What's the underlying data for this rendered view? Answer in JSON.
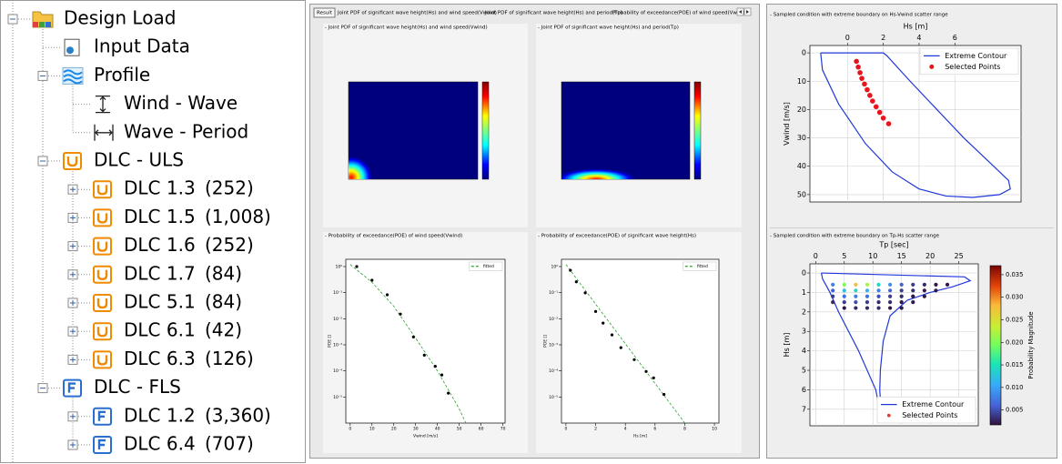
{
  "tree": {
    "label": "Design Load",
    "children": [
      {
        "label": "Input Data"
      },
      {
        "label": "Profile",
        "children": [
          {
            "label": "Wind - Wave"
          },
          {
            "label": "Wave - Period"
          }
        ]
      },
      {
        "label": "DLC - ULS",
        "children": [
          {
            "label": "DLC 1.3",
            "count": "(252)"
          },
          {
            "label": "DLC 1.5",
            "count": "(1,008)"
          },
          {
            "label": "DLC 1.6",
            "count": "(252)"
          },
          {
            "label": "DLC 1.7",
            "count": "(84)"
          },
          {
            "label": "DLC 5.1",
            "count": "(84)"
          },
          {
            "label": "DLC 6.1",
            "count": "(42)"
          },
          {
            "label": "DLC 6.3",
            "count": "(126)"
          }
        ]
      },
      {
        "label": "DLC - FLS",
        "children": [
          {
            "label": "DLC 1.2",
            "count": "(3,360)"
          },
          {
            "label": "DLC 6.4",
            "count": "(707)"
          }
        ]
      }
    ]
  },
  "tabs": {
    "button": "Result",
    "labels": [
      "Joint PDF of significant wave height(Hs) and wind speed(Vwind)",
      "Joint PDF of significant wave height(Hs) and period(Tp)",
      "Probability of exceedance(POE) of wind speed(Vwind)"
    ]
  },
  "middle": {
    "panels": [
      {
        "title": "- Joint PDF of significant wave height(Hs) and wind speed(Vwind)"
      },
      {
        "title": "- Joint PDF of significant wave height(Hs) and period(Tp)"
      }
    ]
  },
  "chart_data": [
    {
      "type": "line",
      "title": "- Probability of exceedance(POE) of wind speed(Vwind)",
      "xlabel": "Vwind [m/s]",
      "ylabel": "POE []",
      "log_y": true,
      "xlim": [
        -2,
        71
      ],
      "ylim": [
        1e-06,
        1.9
      ],
      "xticks": [
        0,
        10,
        20,
        30,
        40,
        50,
        60,
        70
      ],
      "yticks": [
        {
          "value": 1,
          "label": "10⁰"
        },
        {
          "value": 0.1,
          "label": "10⁻¹"
        },
        {
          "value": 0.01,
          "label": "10⁻²"
        },
        {
          "value": 0.001,
          "label": "10⁻³"
        },
        {
          "value": 0.0001,
          "label": "10⁻⁴"
        },
        {
          "value": 1e-05,
          "label": "10⁻⁵"
        }
      ],
      "legend": "upper right",
      "series": [
        {
          "name": "fitted",
          "color": "#2ca02c",
          "style": "dashed",
          "x": [
            0,
            10,
            20,
            30,
            40,
            50,
            53
          ],
          "values": [
            1.2,
            0.25,
            0.03,
            0.0018,
            0.0001,
            3.5e-06,
            1e-06
          ]
        },
        {
          "color": "#000000",
          "marker": "o",
          "x": [
            3,
            10,
            17,
            23,
            29,
            34,
            39,
            42,
            45
          ],
          "values": [
            1,
            0.3,
            0.083,
            0.015,
            0.002,
            0.0004,
            0.00015,
            7e-05,
            1.4e-05
          ]
        }
      ]
    },
    {
      "type": "line",
      "title": "- Probability of exceedance(POE) of significant wave height(Hs)",
      "xlabel": "Hs [m]",
      "ylabel": "POE []",
      "log_y": true,
      "xlim": [
        -0.3,
        10.3
      ],
      "ylim": [
        1e-06,
        1.9
      ],
      "xticks": [
        0,
        2,
        4,
        6,
        8,
        10
      ],
      "yticks": [
        {
          "value": 1,
          "label": "10⁰"
        },
        {
          "value": 0.1,
          "label": "10⁻¹"
        },
        {
          "value": 0.01,
          "label": "10⁻²"
        },
        {
          "value": 0.001,
          "label": "10⁻³"
        },
        {
          "value": 0.0001,
          "label": "10⁻⁴"
        },
        {
          "value": 1e-05,
          "label": "10⁻⁵"
        }
      ],
      "legend": "upper right",
      "series": [
        {
          "name": "fitted",
          "color": "#2ca02c",
          "style": "dashed",
          "x": [
            0,
            2,
            4,
            6,
            8
          ],
          "values": [
            1.2,
            0.036,
            0.0011,
            3.3e-05,
            1e-06
          ]
        },
        {
          "color": "#000000",
          "marker": "o",
          "x": [
            0.3,
            0.7,
            1.3,
            2.0,
            2.5,
            3.1,
            3.7,
            4.6,
            5.4,
            5.9,
            6.6
          ],
          "values": [
            0.72,
            0.26,
            0.098,
            0.019,
            0.0068,
            0.0024,
            0.00078,
            0.00027,
            9.5e-05,
            5.4e-05,
            1.26e-05
          ]
        }
      ]
    },
    {
      "type": "line",
      "title": "- Sampled condition with extreme boundary on Hs-Vwind scatter range",
      "xlabel": "Hs [m]",
      "ylabel": "Vwind [m/s]",
      "x_axis": "top",
      "y_inverted": true,
      "grid": true,
      "xlim": [
        -2.1,
        9.7
      ],
      "ylim": [
        -2.6,
        52.6
      ],
      "xticks": [
        0,
        2,
        4,
        6
      ],
      "yticks": [
        0,
        10,
        20,
        30,
        40,
        50
      ],
      "legend": "upper right",
      "series": [
        {
          "name": "Extreme Contour",
          "color": "#2038d8",
          "style": "solid",
          "x": [
            -1.5,
            2.0,
            2.2,
            3.5,
            5.0,
            6.5,
            8.0,
            9.0,
            9.1,
            8.5,
            7.0,
            5.5,
            4.0,
            2.5,
            1.0,
            -0.5,
            -1.4,
            -1.5
          ],
          "values": [
            0,
            0,
            1,
            10,
            20,
            30,
            39,
            45,
            48,
            50,
            51,
            50.5,
            48,
            42,
            32,
            18,
            6,
            0
          ]
        },
        {
          "name": "Selected Points",
          "color": "#e8141b",
          "marker": "o",
          "x": [
            0.5,
            0.6,
            0.7,
            0.8,
            0.95,
            1.1,
            1.25,
            1.4,
            1.6,
            1.8,
            2.0,
            2.3
          ],
          "values": [
            3,
            5,
            7,
            9,
            11,
            13,
            15,
            17,
            19,
            21,
            23,
            25
          ]
        }
      ]
    },
    {
      "type": "line",
      "title": "- Sampled condition with extreme boundary on Tp-Hs scatter range",
      "xlabel": "Tp [sec]",
      "ylabel": "Hs [m]",
      "x_axis": "top",
      "y_inverted": true,
      "grid": true,
      "xlim": [
        -1,
        28.4
      ],
      "ylim": [
        -0.47,
        7.85
      ],
      "xticks": [
        0,
        5,
        10,
        15,
        20,
        25
      ],
      "yticks": [
        0,
        1,
        2,
        3,
        4,
        5,
        6,
        7
      ],
      "legend": "lower right",
      "clim": [
        0.0017,
        0.037
      ],
      "colorbar_label": "Probability Magnitude",
      "cticks": [
        0.005,
        {
          "value": 0.01,
          "label": "0.010"
        },
        0.015,
        {
          "value": 0.02,
          "label": "0.020"
        },
        0.025,
        {
          "value": 0.03,
          "label": "0.030"
        },
        0.035
      ],
      "series": [
        {
          "name": "Extreme Contour",
          "color": "#2038d8",
          "style": "solid",
          "x": [
            1,
            26,
            27,
            24,
            20,
            16,
            13,
            11.8,
            11.3,
            11.2,
            11.5,
            10.5,
            7.5,
            4,
            2.5,
            1.2,
            1
          ],
          "values": [
            0,
            0.2,
            0.4,
            0.7,
            1.0,
            1.4,
            2.2,
            3.5,
            5,
            6,
            7.5,
            6,
            4,
            2,
            1,
            0.3,
            0
          ]
        },
        {
          "name": "Selected Points",
          "color": "#e03c2d",
          "marker": "o",
          "x": [
            3,
            5,
            7,
            9,
            11,
            13,
            15,
            17,
            19,
            21,
            23,
            3,
            5,
            7,
            9,
            11,
            13,
            15,
            17,
            19,
            21,
            3,
            5,
            7,
            9,
            11,
            13,
            15,
            17,
            19,
            3,
            5,
            7,
            9,
            11,
            13,
            15,
            17,
            5,
            7,
            9,
            11,
            13,
            15
          ],
          "values": [
            0.6,
            0.6,
            0.6,
            0.6,
            0.6,
            0.6,
            0.6,
            0.6,
            0.6,
            0.6,
            0.6,
            0.9,
            0.9,
            0.9,
            0.9,
            0.9,
            0.9,
            0.9,
            0.9,
            0.9,
            0.9,
            1.2,
            1.2,
            1.2,
            1.2,
            1.2,
            1.2,
            1.2,
            1.2,
            1.2,
            1.5,
            1.5,
            1.5,
            1.5,
            1.5,
            1.5,
            1.5,
            1.5,
            1.8,
            1.8,
            1.8,
            1.8,
            1.8,
            1.8
          ],
          "c": [
            0.008,
            0.02,
            0.028,
            0.022,
            0.014,
            0.009,
            0.006,
            0.004,
            0.003,
            0.002,
            0.002,
            0.006,
            0.012,
            0.014,
            0.011,
            0.008,
            0.006,
            0.004,
            0.003,
            0.002,
            0.002,
            0.004,
            0.007,
            0.008,
            0.007,
            0.005,
            0.004,
            0.003,
            0.002,
            0.002,
            0.003,
            0.004,
            0.005,
            0.004,
            0.003,
            0.003,
            0.002,
            0.002,
            0.002,
            0.003,
            0.003,
            0.003,
            0.002,
            0.002
          ]
        }
      ]
    }
  ]
}
